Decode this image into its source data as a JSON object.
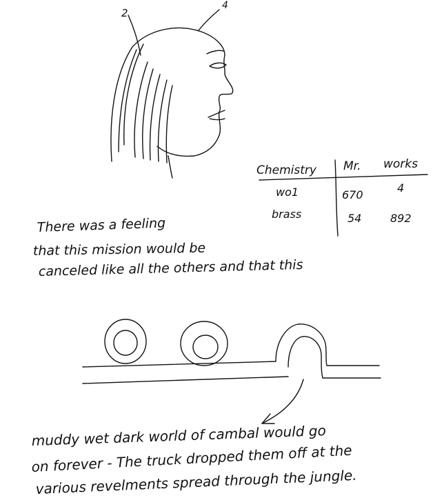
{
  "sketch": {
    "labels": {
      "label_2": "2",
      "label_4": "4"
    }
  },
  "table": {
    "headers": [
      "Chemistry",
      "Mr.",
      "works"
    ],
    "rows": [
      [
        "wo1",
        "670",
        "4"
      ],
      [
        "brass",
        "54",
        "892"
      ]
    ]
  },
  "paragraph1": {
    "lines": [
      "There was a feeling",
      "that this mission would be",
      "canceled like all the others and that this"
    ]
  },
  "paragraph2": {
    "lines": [
      "muddy wet dark world of cambal would go",
      "on forever - The truck dropped them off at the",
      "various revelments spread through the jungle."
    ]
  },
  "colors": {
    "ink": "#111111",
    "paper": "#ffffff"
  }
}
